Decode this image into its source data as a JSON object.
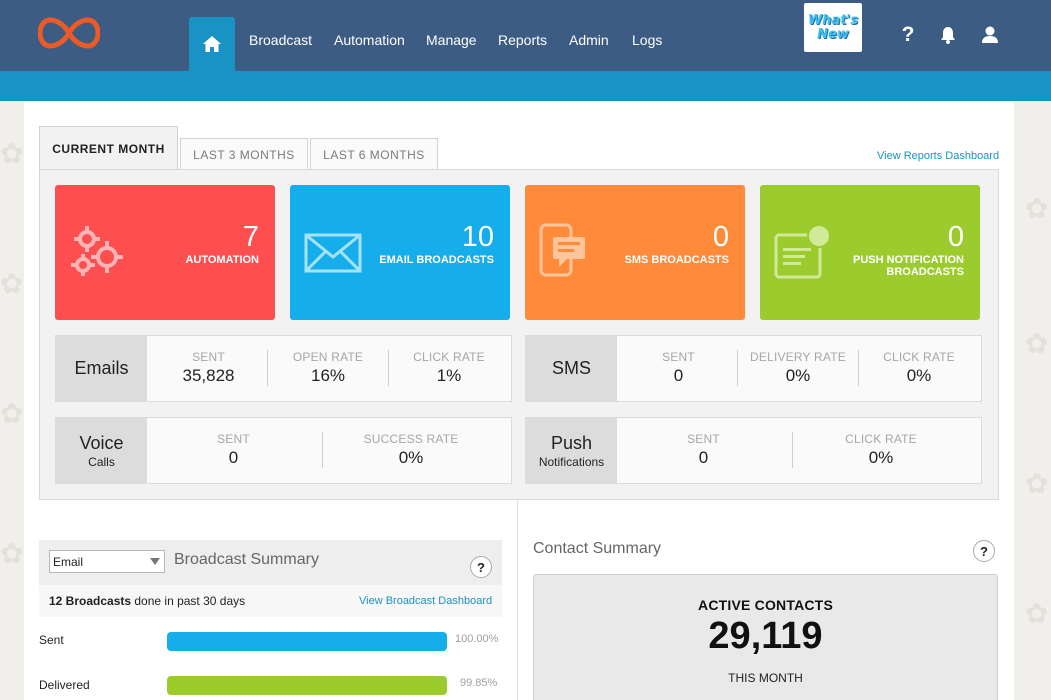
{
  "nav": {
    "items": [
      "Broadcast",
      "Automation",
      "Manage",
      "Reports",
      "Admin",
      "Logs"
    ],
    "whats_new_line1": "What's",
    "whats_new_line2": "New"
  },
  "tabs": {
    "current": "CURRENT MONTH",
    "last3": "LAST 3 MONTHS",
    "last6": "LAST 6 MONTHS",
    "view_reports": "View Reports Dashboard"
  },
  "cards": [
    {
      "value": "7",
      "label": "AUTOMATION",
      "color": "#fd4e50",
      "icon": "gears-icon"
    },
    {
      "value": "10",
      "label": "EMAIL BROADCASTS",
      "color": "#16aeea",
      "icon": "envelope-icon"
    },
    {
      "value": "0",
      "label": "SMS BROADCASTS",
      "color": "#ff8a39",
      "icon": "phone-message-icon"
    },
    {
      "value": "0",
      "label_line1": "PUSH NOTIFICATION",
      "label_line2": "BROADCASTS",
      "color": "#9ccb2e",
      "icon": "push-notification-icon"
    }
  ],
  "stats": {
    "emails": {
      "title": "Emails",
      "sent_label": "SENT",
      "sent": "35,828",
      "open_label": "OPEN RATE",
      "open": "16%",
      "click_label": "CLICK RATE",
      "click": "1%"
    },
    "sms": {
      "title": "SMS",
      "sent_label": "SENT",
      "sent": "0",
      "delivery_label": "DELIVERY RATE",
      "delivery": "0%",
      "click_label": "CLICK RATE",
      "click": "0%"
    },
    "voice": {
      "title": "Voice",
      "subtitle": "Calls",
      "sent_label": "SENT",
      "sent": "0",
      "success_label": "SUCCESS RATE",
      "success": "0%"
    },
    "push": {
      "title": "Push",
      "subtitle": "Notifications",
      "sent_label": "SENT",
      "sent": "0",
      "click_label": "CLICK RATE",
      "click": "0%"
    }
  },
  "broadcast_summary": {
    "select_value": "Email",
    "title": "Broadcast Summary",
    "help": "?",
    "count_bold": "12 Broadcasts",
    "count_rest": " done in past 30 days",
    "link": "View Broadcast Dashboard",
    "bars": [
      {
        "label": "Sent",
        "pct": "100.00%",
        "fraction": 1.0,
        "color": "#16aeea"
      },
      {
        "label": "Delivered",
        "pct": "99.85%",
        "fraction": 0.9985,
        "color": "#9ccb2e"
      }
    ]
  },
  "contact_summary": {
    "title": "Contact Summary",
    "help": "?",
    "active_label": "ACTIVE CONTACTS",
    "active_value": "29,119",
    "period": "THIS MONTH"
  },
  "colors": {
    "topbar": "#3d5c83",
    "subbar": "#1a93c4",
    "logo": "#ee5a24"
  }
}
